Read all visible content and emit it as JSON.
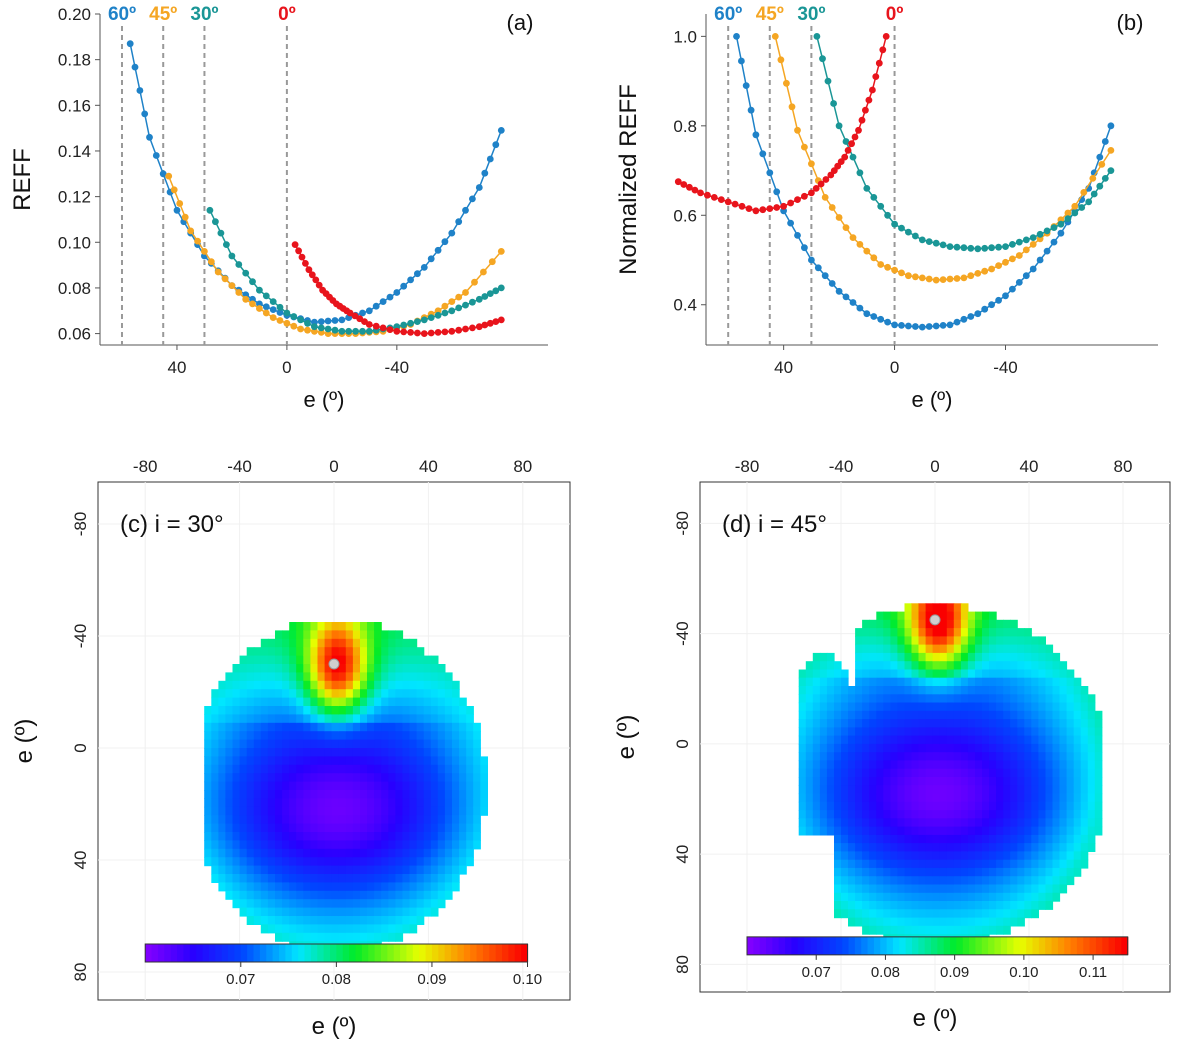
{
  "chart_data": [
    {
      "panel": "a",
      "type": "line",
      "panel_label": "(a)",
      "xlabel": "e (º)",
      "ylabel": "REFF",
      "xlim": [
        68,
        -95
      ],
      "ylim": [
        0.055,
        0.2
      ],
      "xticks": [
        {
          "v": 40,
          "label": "40"
        },
        {
          "v": 0,
          "label": "0"
        },
        {
          "v": -40,
          "label": "-40"
        }
      ],
      "yticks": [
        {
          "v": 0.06,
          "label": "0.06"
        },
        {
          "v": 0.08,
          "label": "0.08"
        },
        {
          "v": 0.1,
          "label": "0.10"
        },
        {
          "v": 0.12,
          "label": "0.12"
        },
        {
          "v": 0.14,
          "label": "0.14"
        },
        {
          "v": 0.16,
          "label": "0.16"
        },
        {
          "v": 0.18,
          "label": "0.18"
        },
        {
          "v": 0.2,
          "label": "0.20"
        }
      ],
      "markers": [
        {
          "x": 60,
          "label": "60º",
          "color": "#1f82c8"
        },
        {
          "x": 45,
          "label": "45º",
          "color": "#f5a623"
        },
        {
          "x": 30,
          "label": "30º",
          "color": "#1a9696"
        },
        {
          "x": 0,
          "label": "0º",
          "color": "#e8141c"
        }
      ],
      "series": [
        {
          "name": "i = 60º",
          "color": "#1f82c8",
          "x": [
            57,
            50,
            40,
            30,
            20,
            10,
            0,
            -10,
            -20,
            -30,
            -40,
            -50,
            -60,
            -70,
            -78
          ],
          "y": [
            0.187,
            0.146,
            0.114,
            0.094,
            0.081,
            0.073,
            0.068,
            0.065,
            0.066,
            0.07,
            0.078,
            0.089,
            0.104,
            0.124,
            0.149
          ]
        },
        {
          "name": "i = 45º",
          "color": "#f5a623",
          "x": [
            43,
            35,
            25,
            15,
            5,
            -5,
            -15,
            -25,
            -35,
            -45,
            -55,
            -65,
            -78
          ],
          "y": [
            0.129,
            0.105,
            0.087,
            0.075,
            0.067,
            0.062,
            0.06,
            0.06,
            0.061,
            0.064,
            0.07,
            0.078,
            0.096
          ]
        },
        {
          "name": "i = 30º",
          "color": "#1a9696",
          "x": [
            28,
            20,
            10,
            0,
            -10,
            -20,
            -30,
            -40,
            -50,
            -60,
            -70,
            -78
          ],
          "y": [
            0.114,
            0.094,
            0.079,
            0.069,
            0.063,
            0.061,
            0.061,
            0.063,
            0.066,
            0.07,
            0.075,
            0.08
          ]
        },
        {
          "name": "i = 0º",
          "color": "#e8141c",
          "x": [
            -3,
            -8,
            -13,
            -18,
            -23,
            -30,
            -40,
            -50,
            -60,
            -70,
            -78
          ],
          "y": [
            0.099,
            0.088,
            0.079,
            0.073,
            0.069,
            0.064,
            0.061,
            0.06,
            0.061,
            0.063,
            0.066
          ]
        }
      ]
    },
    {
      "panel": "b",
      "type": "line",
      "panel_label": "(b)",
      "xlabel": "e (º)",
      "ylabel": "Normalized REFF",
      "xlim": [
        68,
        -95
      ],
      "ylim": [
        0.31,
        1.05
      ],
      "xticks": [
        {
          "v": 40,
          "label": "40"
        },
        {
          "v": 0,
          "label": "0"
        },
        {
          "v": -40,
          "label": "-40"
        }
      ],
      "yticks": [
        {
          "v": 0.4,
          "label": "0.4"
        },
        {
          "v": 0.6,
          "label": "0.6"
        },
        {
          "v": 0.8,
          "label": "0.8"
        },
        {
          "v": 1.0,
          "label": "1.0"
        }
      ],
      "markers": [
        {
          "x": 60,
          "label": "60º",
          "color": "#1f82c8"
        },
        {
          "x": 45,
          "label": "45º",
          "color": "#f5a623"
        },
        {
          "x": 30,
          "label": "30º",
          "color": "#1a9696"
        },
        {
          "x": 0,
          "label": "0º",
          "color": "#e8141c"
        }
      ],
      "series": [
        {
          "name": "i = 60º",
          "color": "#1f82c8",
          "x": [
            57,
            50,
            40,
            30,
            20,
            10,
            0,
            -10,
            -20,
            -30,
            -40,
            -50,
            -60,
            -70,
            -78
          ],
          "y": [
            1.0,
            0.78,
            0.61,
            0.5,
            0.43,
            0.38,
            0.355,
            0.35,
            0.355,
            0.38,
            0.42,
            0.48,
            0.56,
            0.66,
            0.8
          ]
        },
        {
          "name": "i = 45º",
          "color": "#f5a623",
          "x": [
            43,
            35,
            25,
            15,
            5,
            -5,
            -15,
            -25,
            -35,
            -45,
            -55,
            -65,
            -78
          ],
          "y": [
            1.0,
            0.79,
            0.64,
            0.55,
            0.49,
            0.465,
            0.455,
            0.46,
            0.48,
            0.51,
            0.56,
            0.62,
            0.745
          ]
        },
        {
          "name": "i = 30º",
          "color": "#1a9696",
          "x": [
            28,
            20,
            10,
            0,
            -10,
            -20,
            -30,
            -40,
            -50,
            -60,
            -70,
            -78
          ],
          "y": [
            1.0,
            0.8,
            0.66,
            0.58,
            0.545,
            0.53,
            0.525,
            0.53,
            0.55,
            0.58,
            0.63,
            0.7
          ]
        },
        {
          "name": "i = 0º",
          "color": "#e8141c",
          "x": [
            3,
            8,
            13,
            18,
            23,
            30,
            40,
            50,
            60,
            70,
            78
          ],
          "y": [
            1.0,
            0.88,
            0.79,
            0.73,
            0.69,
            0.65,
            0.62,
            0.61,
            0.63,
            0.65,
            0.675
          ]
        }
      ]
    },
    {
      "panel": "c",
      "type": "heatmap",
      "title": "(c) i = 30°",
      "xlabel": "e (º)",
      "ylabel": "e (º)",
      "xlim": [
        -100,
        100
      ],
      "ylim": [
        -95,
        90
      ],
      "xticks": [
        {
          "v": -80,
          "label": "-80"
        },
        {
          "v": -40,
          "label": "-40"
        },
        {
          "v": 0,
          "label": "0"
        },
        {
          "v": 40,
          "label": "40"
        },
        {
          "v": 80,
          "label": "80"
        }
      ],
      "yticks": [
        {
          "v": -80,
          "label": "-80"
        },
        {
          "v": -40,
          "label": "-40"
        },
        {
          "v": 0,
          "label": "0"
        },
        {
          "v": 40,
          "label": "40"
        },
        {
          "v": 80,
          "label": "80"
        }
      ],
      "value_range": [
        0.06,
        0.1
      ],
      "colorbar_ticks": [
        {
          "v": 0.07,
          "label": "0.07"
        },
        {
          "v": 0.08,
          "label": "0.08"
        },
        {
          "v": 0.09,
          "label": "0.09"
        },
        {
          "v": 0.1,
          "label": "0.10"
        }
      ],
      "hotspot": [
        0,
        -30
      ],
      "minimum": [
        0,
        22
      ]
    },
    {
      "panel": "d",
      "type": "heatmap",
      "title": "(d) i = 45°",
      "xlabel": "e (º)",
      "ylabel": "e (º)",
      "xlim": [
        -100,
        100
      ],
      "ylim": [
        -95,
        90
      ],
      "xticks": [
        {
          "v": -80,
          "label": "-80"
        },
        {
          "v": -40,
          "label": "-40"
        },
        {
          "v": 0,
          "label": "0"
        },
        {
          "v": 40,
          "label": "40"
        },
        {
          "v": 80,
          "label": "80"
        }
      ],
      "yticks": [
        {
          "v": -80,
          "label": "-80"
        },
        {
          "v": -40,
          "label": "-40"
        },
        {
          "v": 0,
          "label": "0"
        },
        {
          "v": 40,
          "label": "40"
        },
        {
          "v": 80,
          "label": "80"
        }
      ],
      "value_range": [
        0.06,
        0.115
      ],
      "colorbar_ticks": [
        {
          "v": 0.07,
          "label": "0.07"
        },
        {
          "v": 0.08,
          "label": "0.08"
        },
        {
          "v": 0.09,
          "label": "0.09"
        },
        {
          "v": 0.1,
          "label": "0.10"
        },
        {
          "v": 0.11,
          "label": "0.11"
        }
      ],
      "hotspot": [
        0,
        -45
      ],
      "minimum": [
        0,
        18
      ]
    }
  ]
}
